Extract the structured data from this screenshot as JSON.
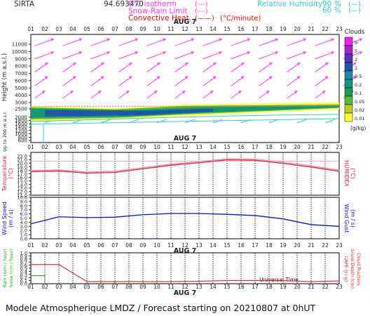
{
  "header": {
    "site": "SIRTA",
    "coord": "94.693470",
    "legend_lines": [
      {
        "label": "0°C isotherm",
        "sample": "(---)",
        "color": "#ff33ff"
      },
      {
        "label": "Snow-Rain Limit",
        "sample": "(---)",
        "color": "#ff33ff"
      },
      {
        "label": "Convective Heat.",
        "sample": "(——)",
        "unit": "(°C/minute)",
        "color": "#ff0000"
      }
    ],
    "rh_title": "Relative Humidity",
    "rh_items": [
      {
        "pct": "90 %",
        "sample": "(—)"
      },
      {
        "pct": "60 %",
        "sample": "(—)"
      }
    ]
  },
  "colors": {
    "magenta": "#ff33ff",
    "cyan": "#33cccc",
    "red": "#dd2244",
    "blue": "#1010cc",
    "green": "#22aa22",
    "rain_red": "#ee2222"
  },
  "hours": [
    "01",
    "02",
    "03",
    "04",
    "05",
    "06",
    "07",
    "08",
    "09",
    "10",
    "11",
    "12",
    "13",
    "14",
    "15",
    "16",
    "17",
    "18",
    "19",
    "20",
    "21",
    "22",
    "23"
  ],
  "date_label": "AUG  7",
  "footer": "Modele Atmospherique LMDZ / Forecast starting on 20210807 at 0hUT",
  "chart_data": [
    {
      "type": "heatmap",
      "name": "clouds-wind-height",
      "ylabel": "Height (m a.s.l.)",
      "ylabel2": "Up to 200 m a.s.l.",
      "y_ticks": [
        11000,
        10000,
        9000,
        8000,
        7000,
        6000,
        5000,
        4000,
        3000,
        2500,
        2000,
        1800,
        1600,
        1400,
        1200,
        1000,
        800,
        600
      ],
      "colorbar": {
        "title": "Clouds",
        "unit": "(g/kg)",
        "levels": [
          "9",
          "5",
          "2",
          "1",
          "0.5",
          "0.2",
          "0.1",
          "0.05",
          "0.02",
          "0.01"
        ],
        "colors": [
          "#ee22ee",
          "#aa22cc",
          "#5533bb",
          "#2255aa",
          "#2288aa",
          "#119977",
          "#229955",
          "#55bb44",
          "#bbcc22",
          "#ffff33"
        ]
      },
      "wind_barbs_upper": [
        {
          "height": 10800,
          "direction": "west-southwest",
          "strength": "strong"
        },
        {
          "height": 9000,
          "direction": "west-southwest",
          "strength": "strong"
        },
        {
          "height": 7200,
          "direction": "southwest",
          "strength": "moderate"
        },
        {
          "height": 5300,
          "direction": "southwest",
          "strength": "moderate"
        },
        {
          "height": 3600,
          "direction": "southwest",
          "strength": "light"
        }
      ],
      "cloud_layer": {
        "base_m": 2000,
        "top_m": 2900,
        "from_hour": 1,
        "to_hour": 23
      },
      "zero_deg_isotherm_m": 2700
    },
    {
      "type": "line",
      "name": "temperature-humidex",
      "ylabel": "Temperature (°C)",
      "ylabel2": "HUMIDEX (°C)",
      "ylim": [
        11,
        23
      ],
      "y_ticks": [
        11,
        12,
        13,
        14,
        15,
        16,
        17,
        18,
        19,
        20,
        21,
        22
      ],
      "x": [
        1,
        3,
        5,
        7,
        9,
        11,
        13,
        15,
        17,
        19,
        21,
        23
      ],
      "series": [
        {
          "name": "Temperature",
          "color": "#dd2244",
          "values": [
            17.6,
            17.8,
            17.2,
            17.4,
            18.4,
            19.4,
            20.1,
            20.9,
            20.8,
            19.9,
            18.9,
            17.7
          ]
        },
        {
          "name": "Humidex",
          "color": "#ff8899",
          "values": [
            17.9,
            18.1,
            17.5,
            17.7,
            18.7,
            19.7,
            20.4,
            21.2,
            21.1,
            20.2,
            19.2,
            18.0
          ]
        }
      ]
    },
    {
      "type": "line",
      "name": "wind-speed-gust",
      "ylabel": "Wind Speed (m / s)",
      "ylabel2": "Wind Gust (m / s)",
      "ylim": [
        0,
        10
      ],
      "y_ticks": [
        0,
        1,
        2,
        3,
        4,
        5,
        6,
        7,
        8,
        9,
        10
      ],
      "x": [
        1,
        3,
        5,
        7,
        9,
        11,
        13,
        15,
        17,
        19,
        21,
        23
      ],
      "series": [
        {
          "name": "Wind Speed",
          "color": "#1010cc",
          "values": [
            3.6,
            5.3,
            5.1,
            5.2,
            5.8,
            6.1,
            6.1,
            5.9,
            5.6,
            4.8,
            3.4,
            3.0
          ]
        }
      ]
    },
    {
      "type": "line",
      "name": "precipitation",
      "ylabel": "Rain (mm / hour)",
      "ylabel_b": "Snow (cm / hour)",
      "ylabel2": "CAPE (J / g)",
      "ylabel2_b": "Snow Depth (cm)",
      "ylabel2_c": "Cloud Fraction",
      "ylim": [
        0,
        1
      ],
      "y_ticks": [
        0,
        0.1,
        0.2,
        0.3,
        0.4,
        0.5,
        0.6,
        0.7,
        0.8,
        0.9,
        1
      ],
      "xlabel": "Universal Time",
      "series": [
        {
          "name": "Rain",
          "color": "#22aa22",
          "x": [
            1,
            2,
            2
          ],
          "values": [
            0.26,
            0.26,
            0
          ]
        },
        {
          "name": "CAPE",
          "color": "#ee2222",
          "x": [
            1,
            3,
            5,
            7,
            9,
            11,
            13,
            15,
            17,
            19,
            21,
            23
          ],
          "values": [
            0.62,
            0.62,
            0.07,
            0.07,
            0.07,
            0.07,
            0.08,
            0.1,
            0.1,
            0.1,
            0.07,
            0.09
          ]
        }
      ]
    }
  ]
}
